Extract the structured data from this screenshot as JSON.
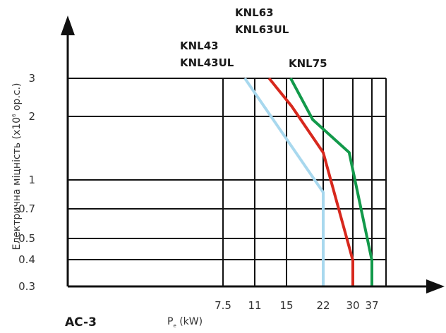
{
  "chart_data": {
    "type": "line",
    "x_ticks": [
      "7.5",
      "11",
      "15",
      "22",
      "30",
      "37"
    ],
    "y_ticks": [
      "0.3",
      "0.4",
      "0.5",
      "0.7",
      "1",
      "2",
      "3"
    ],
    "y_scale": "log",
    "ylim": [
      0.3,
      3
    ],
    "ylabel_main": "Електрична міцність (x10",
    "ylabel_sup": "6",
    "ylabel_tail": " op.c.)",
    "xlabel_main": "P",
    "xlabel_sub": "e",
    "xlabel_tail": " (kW)",
    "corner_label": "AC-3",
    "grid": true,
    "series": [
      {
        "name": "KNL43 KNL43UL",
        "label_lines": [
          "KNL43",
          "KNL43UL"
        ],
        "color": "#a8d8ee",
        "points": [
          [
            9.9,
            3
          ],
          [
            22,
            0.85
          ],
          [
            22,
            0.3
          ]
        ]
      },
      {
        "name": "KNL63 KNL63UL",
        "label_lines": [
          "KNL63",
          "KNL63UL"
        ],
        "color": "#d7281d",
        "points": [
          [
            12.8,
            3
          ],
          [
            16,
            2.2
          ],
          [
            22,
            1.32
          ],
          [
            30,
            0.4
          ],
          [
            30,
            0.3
          ]
        ]
      },
      {
        "name": "KNL75",
        "label_lines": [
          "KNL75"
        ],
        "color": "#12994a",
        "points": [
          [
            15.8,
            3
          ],
          [
            20,
            1.9
          ],
          [
            29,
            1.32
          ],
          [
            37,
            0.4
          ],
          [
            37,
            0.3
          ]
        ]
      }
    ]
  }
}
